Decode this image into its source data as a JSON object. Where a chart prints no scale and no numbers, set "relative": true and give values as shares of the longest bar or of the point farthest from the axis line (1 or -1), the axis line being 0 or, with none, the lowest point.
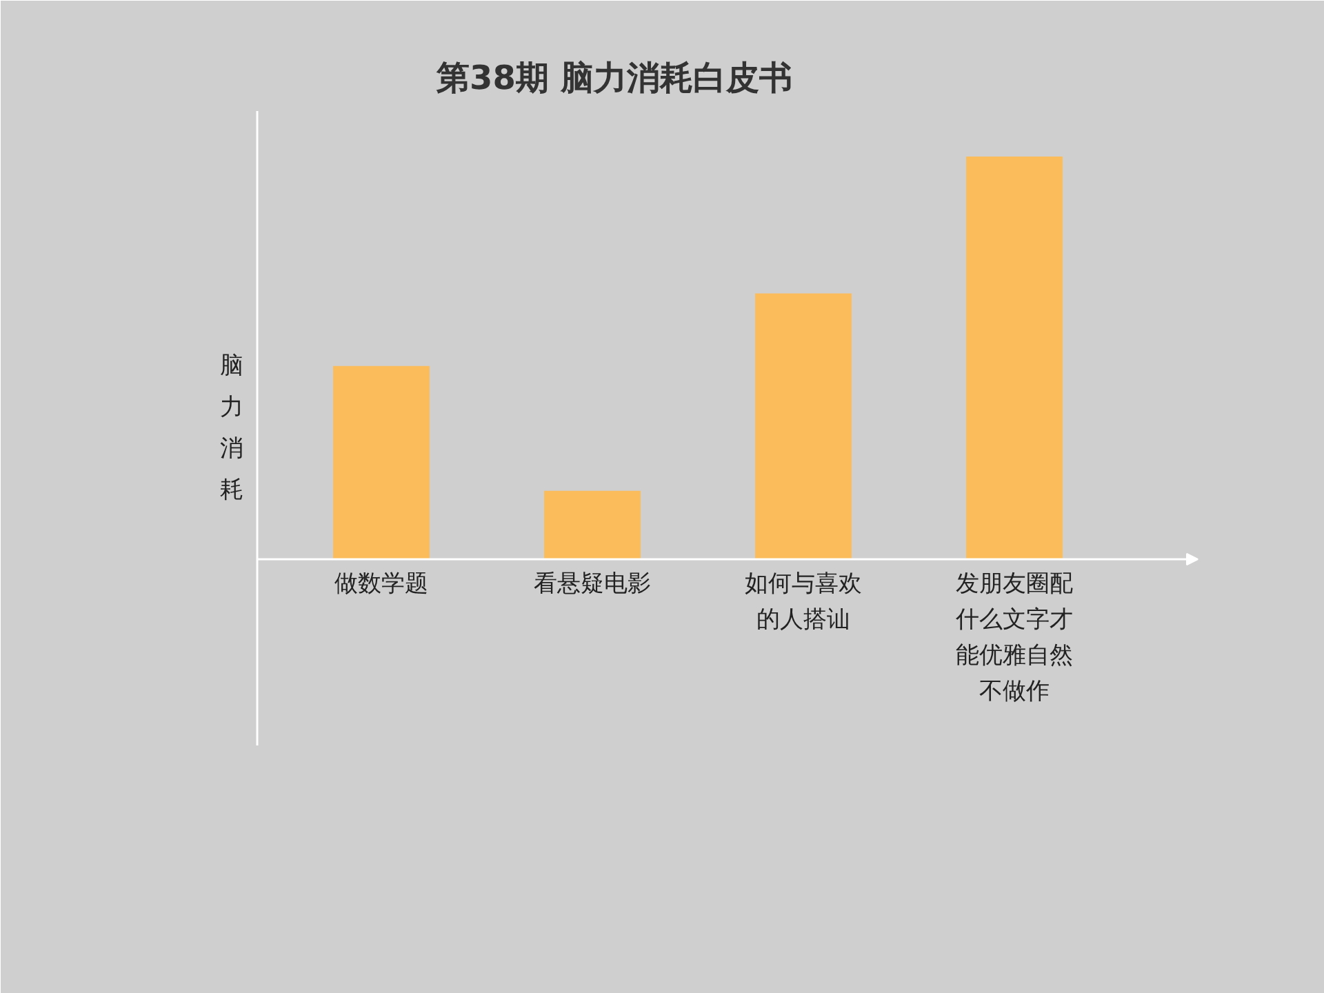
{
  "chart_data": {
    "type": "bar",
    "title": "第38期 脑力消耗白皮书",
    "ylabel": "脑力消耗",
    "categories": [
      "做数学题",
      "看悬疑电影",
      "如何与喜欢的人搭讪",
      "发朋友圈配什么文字才能优雅自然不做作"
    ],
    "values": [
      0.48,
      0.17,
      0.66,
      1
    ],
    "color": "#fbbd5b",
    "relative": true
  }
}
